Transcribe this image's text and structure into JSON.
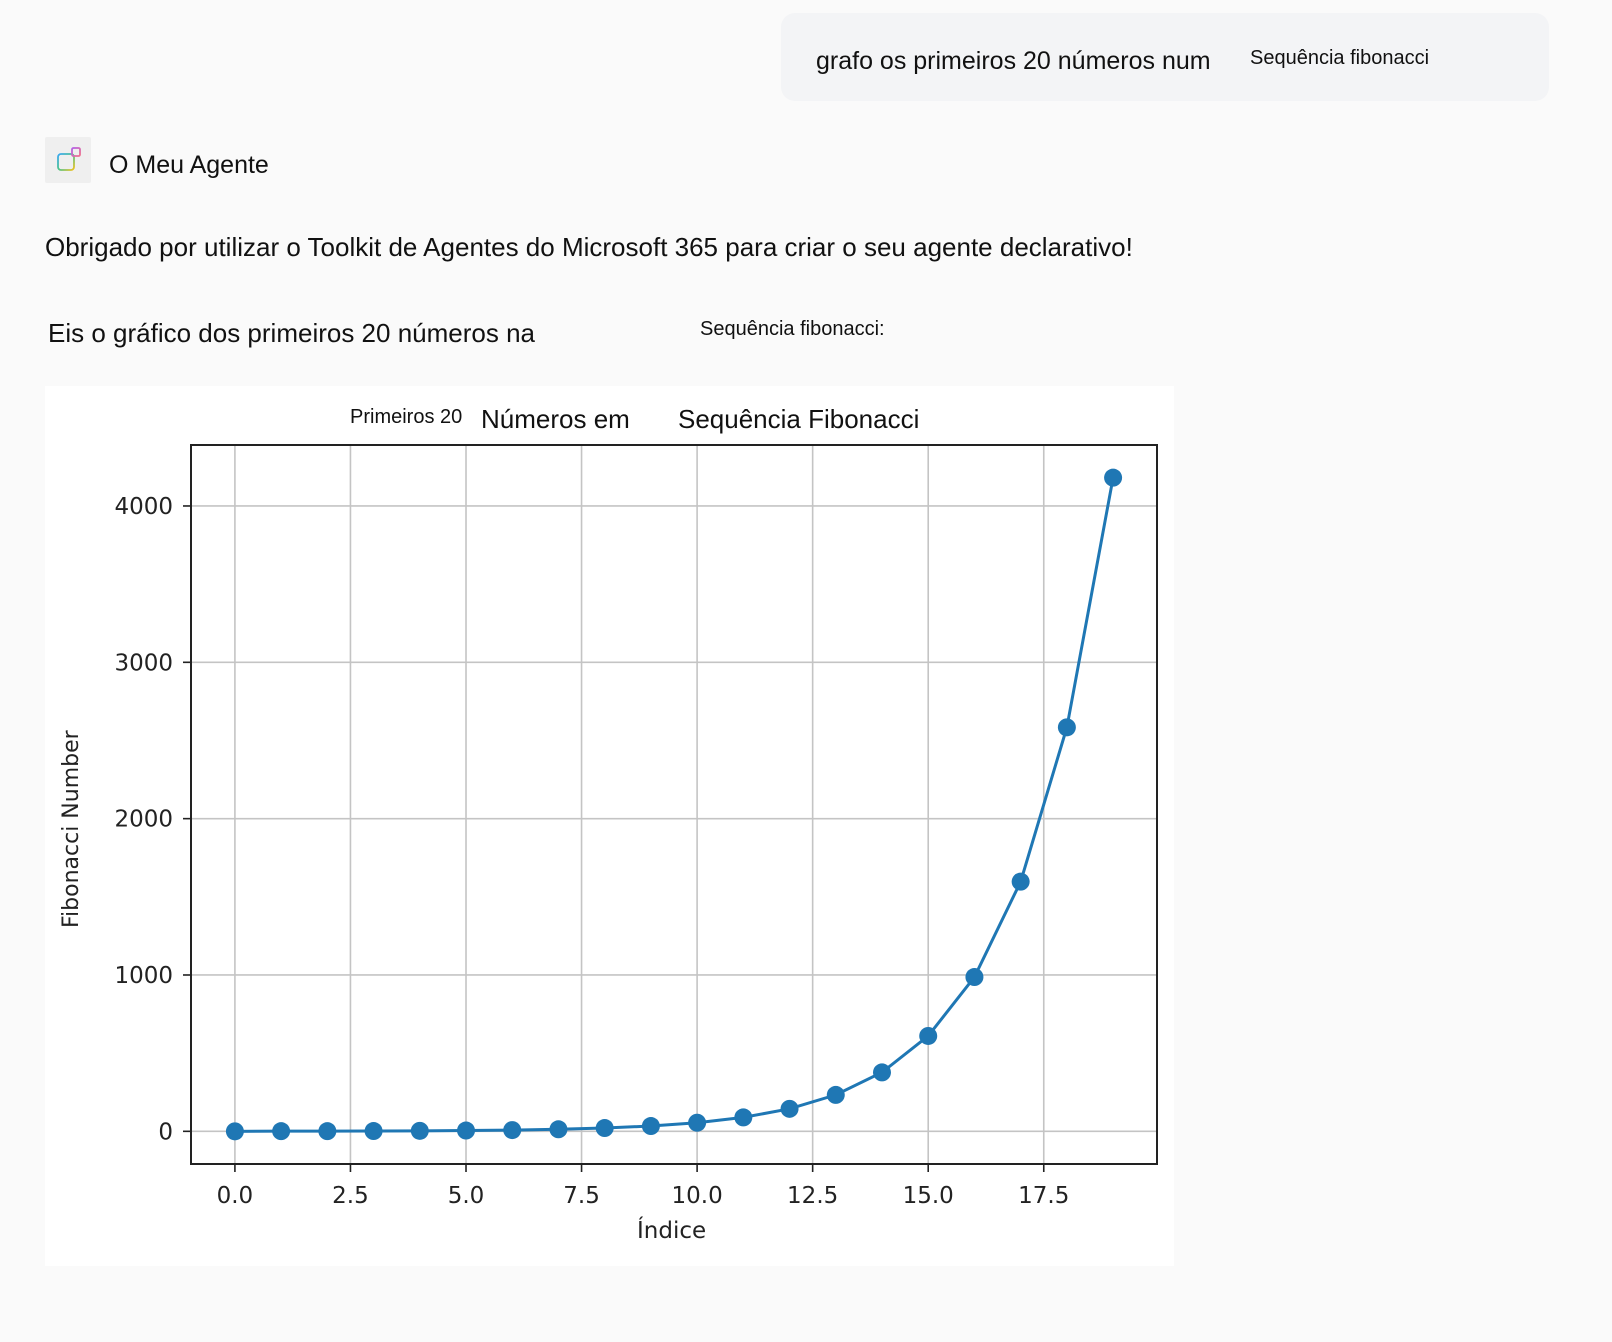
{
  "user_message": {
    "text_main": "grafo os primeiros 20 números num",
    "text_inline": "Sequência fibonacci"
  },
  "agent": {
    "name": "O Meu Agente",
    "icon": "agent-grid-icon"
  },
  "response": {
    "line1": "Obrigado por utilizar o Toolkit de Agentes do Microsoft 365 para criar o seu agente declarativo!",
    "line2_main": "Eis o gráfico dos primeiros 20 números na",
    "line2_inline": "Sequência fibonacci:"
  },
  "chart_data": {
    "type": "line",
    "title": "Primeiros 20 Números em Sequência Fibonacci",
    "title_parts": [
      "Primeiros 20",
      "Números em",
      "Sequência Fibonacci"
    ],
    "xlabel": "Índice",
    "ylabel": "Fibonacci Number",
    "x": [
      0,
      1,
      2,
      3,
      4,
      5,
      6,
      7,
      8,
      9,
      10,
      11,
      12,
      13,
      14,
      15,
      16,
      17,
      18,
      19
    ],
    "series": [
      {
        "name": "Fibonacci",
        "color": "#1f77b4",
        "marker": "circle",
        "values": [
          0,
          1,
          1,
          2,
          3,
          5,
          8,
          13,
          21,
          34,
          55,
          89,
          144,
          233,
          377,
          610,
          987,
          1597,
          2584,
          4181
        ]
      }
    ],
    "xticks": [
      "0.0",
      "2.5",
      "5.0",
      "7.5",
      "10.0",
      "12.5",
      "15.0",
      "17.5"
    ],
    "yticks": [
      "0",
      "1000",
      "2000",
      "3000",
      "4000"
    ],
    "xlim": [
      -0.95,
      19.95
    ],
    "ylim": [
      -209,
      4390
    ],
    "grid": true,
    "legend": "none"
  }
}
